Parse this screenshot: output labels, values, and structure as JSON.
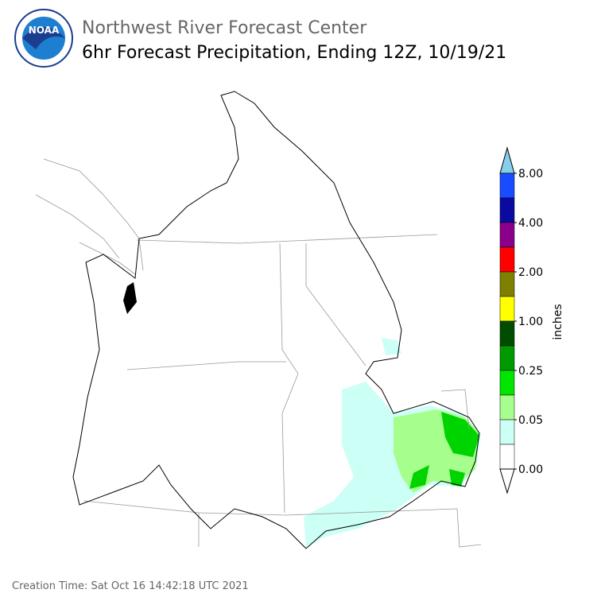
{
  "header": {
    "logo": "NOAA",
    "org": "Northwest River Forecast Center",
    "title": "6hr Forecast Precipitation, Ending 12Z, 10/19/21"
  },
  "colorbar": {
    "label": "inches",
    "ticks": [
      "8.00",
      "4.00",
      "2.00",
      "1.00",
      "0.25",
      "0.05",
      "0.00"
    ],
    "colors": [
      "#87ceeb",
      "#1a4cff",
      "#0a0aa0",
      "#8b008b",
      "#ff0000",
      "#808000",
      "#ffff00",
      "#004d00",
      "#009900",
      "#00e600",
      "#a6ff8c",
      "#ccfff5",
      "#ffffff",
      "#ffffff"
    ]
  },
  "footer": {
    "creation": "Creation Time: Sat Oct 16 14:42:18 UTC 2021"
  }
}
